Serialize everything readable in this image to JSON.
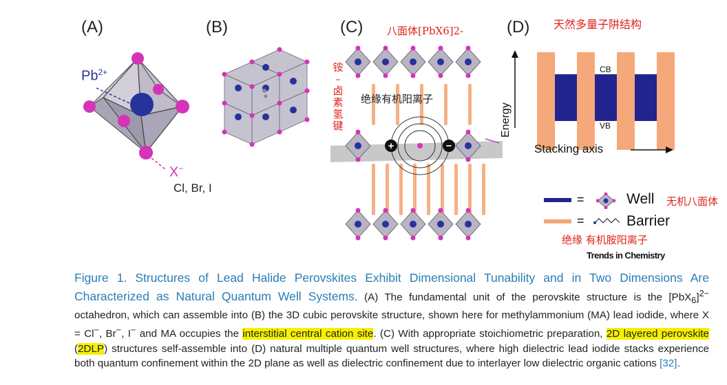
{
  "panels": {
    "a": {
      "label": "(A)",
      "pb": "Pb",
      "pb_sup": "2+",
      "x": "X",
      "x_sup": "−",
      "halides": "Cl, Br, I"
    },
    "b": {
      "label": "(B)"
    },
    "c": {
      "label": "(C)",
      "annot_top": "八面体[PbX6]2-",
      "annot_side": [
        "铵",
        "–",
        "卤",
        "素",
        "氢",
        "键"
      ],
      "annot_mid": "绝缘有机阳离子"
    },
    "d": {
      "label": "(D)",
      "annot_top": "天然多量子阱结构",
      "cb": "CB",
      "vb": "VB",
      "y_axis": "Energy",
      "x_axis": "Stacking axis"
    }
  },
  "legend": {
    "well": "Well",
    "well_cn": "无机八面体",
    "barrier": "Barrier",
    "barrier_cn": "绝缘  有机胺阳离子",
    "eq": "=",
    "well_color": "#23238f",
    "barrier_color": "#f5a97a"
  },
  "brand": "Trends in Chemistry",
  "caption": {
    "title": "Figure 1. Structures of Lead Halide Perovskites Exhibit Dimensional Tunability and in Two Dimensions Are Characterized as Natural Quantum Well Systems.",
    "t1": " (A) The fundamental unit of the perovskite structure is the [PbX",
    "sub6": "6",
    "t1b": "]",
    "sup2": "2−",
    "t2": " octahedron, which can assemble into (B) the 3D cubic perovskite structure, shown here for methylammonium (MA) lead iodide, where X = Cl",
    "supm1": "−",
    "t2b": ", Br",
    "supm2": "−",
    "t2c": ", I",
    "supm3": "−",
    "t2d": " and MA occupies the ",
    "hl1": "interstitial central cation site",
    "t3": ". (C) With appropriate stoichiometric preparation, ",
    "hl2": "2D layered perovskite",
    "t4": " (",
    "hl3": "2DLP",
    "t5": ") structures self-assemble into (D) natural multiple quantum well structures, where high dielectric lead iodide stacks experience both quantum confinement within the 2D plane as well as dielectric confinement due to interlayer low dielectric organic cations ",
    "ref": "[32]",
    "t6": "."
  },
  "colors": {
    "octahedron": "#b9b4c4",
    "pb_atom": "#27339a",
    "x_atom": "#d633b8",
    "caption_blue": "#2a7db5",
    "highlight": "#f6f000"
  }
}
